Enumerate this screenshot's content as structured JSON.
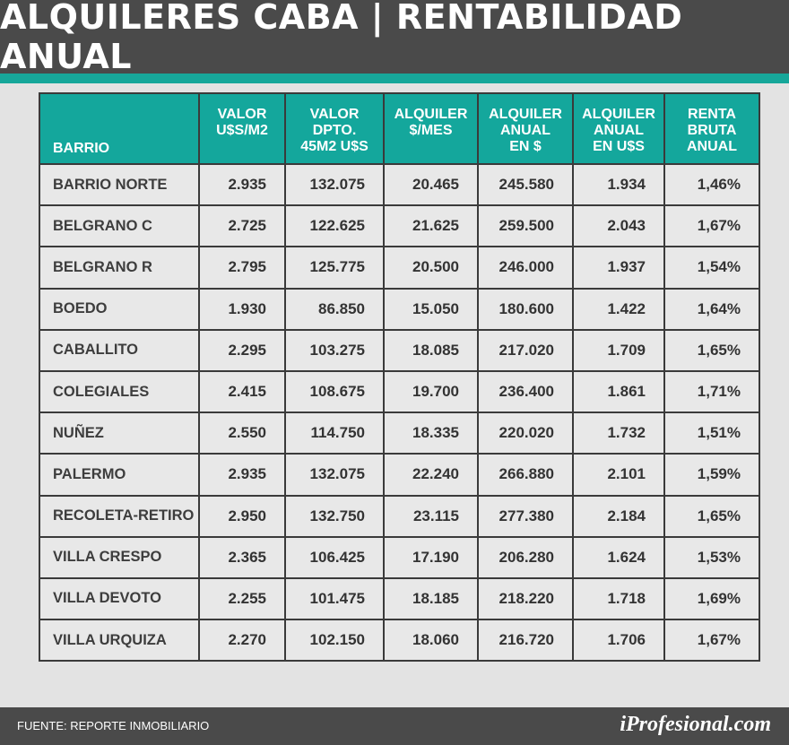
{
  "title": "ALQUILERES CABA | RENTABILIDAD ANUAL",
  "columns": [
    [
      "BARRIO"
    ],
    [
      "VALOR",
      "U$S/M2"
    ],
    [
      "VALOR",
      "DPTO.",
      "45M2 U$S"
    ],
    [
      "ALQUILER",
      "$/MES"
    ],
    [
      "ALQUILER",
      "ANUAL",
      "EN $"
    ],
    [
      "ALQUILER",
      "ANUAL",
      "EN U$S"
    ],
    [
      "RENTA",
      "BRUTA",
      "ANUAL"
    ]
  ],
  "rows": [
    [
      "BARRIO NORTE",
      "2.935",
      "132.075",
      "20.465",
      "245.580",
      "1.934",
      "1,46%"
    ],
    [
      "BELGRANO C",
      "2.725",
      "122.625",
      "21.625",
      "259.500",
      "2.043",
      "1,67%"
    ],
    [
      "BELGRANO R",
      "2.795",
      "125.775",
      "20.500",
      "246.000",
      "1.937",
      "1,54%"
    ],
    [
      "BOEDO",
      "1.930",
      "86.850",
      "15.050",
      "180.600",
      "1.422",
      "1,64%"
    ],
    [
      "CABALLITO",
      "2.295",
      "103.275",
      "18.085",
      "217.020",
      "1.709",
      "1,65%"
    ],
    [
      "COLEGIALES",
      "2.415",
      "108.675",
      "19.700",
      "236.400",
      "1.861",
      "1,71%"
    ],
    [
      "NUÑEZ",
      "2.550",
      "114.750",
      "18.335",
      "220.020",
      "1.732",
      "1,51%"
    ],
    [
      "PALERMO",
      "2.935",
      "132.075",
      "22.240",
      "266.880",
      "2.101",
      "1,59%"
    ],
    [
      "RECOLETA-RETIRO",
      "2.950",
      "132.750",
      "23.115",
      "277.380",
      "2.184",
      "1,65%"
    ],
    [
      "VILLA CRESPO",
      "2.365",
      "106.425",
      "17.190",
      "206.280",
      "1.624",
      "1,53%"
    ],
    [
      "VILLA DEVOTO",
      "2.255",
      "101.475",
      "18.185",
      "218.220",
      "1.718",
      "1,69%"
    ],
    [
      "VILLA URQUIZA",
      "2.270",
      "102.150",
      "18.060",
      "216.720",
      "1.706",
      "1,67%"
    ]
  ],
  "footer": {
    "source": "FUENTE: REPORTE INMOBILIARIO",
    "logo": "iProfesional.com"
  },
  "colors": {
    "header_bg": "#4a4a4a",
    "accent": "#17a79a",
    "table_header_bg": "#14a79c",
    "cell_bg": "#e8e8e8"
  }
}
